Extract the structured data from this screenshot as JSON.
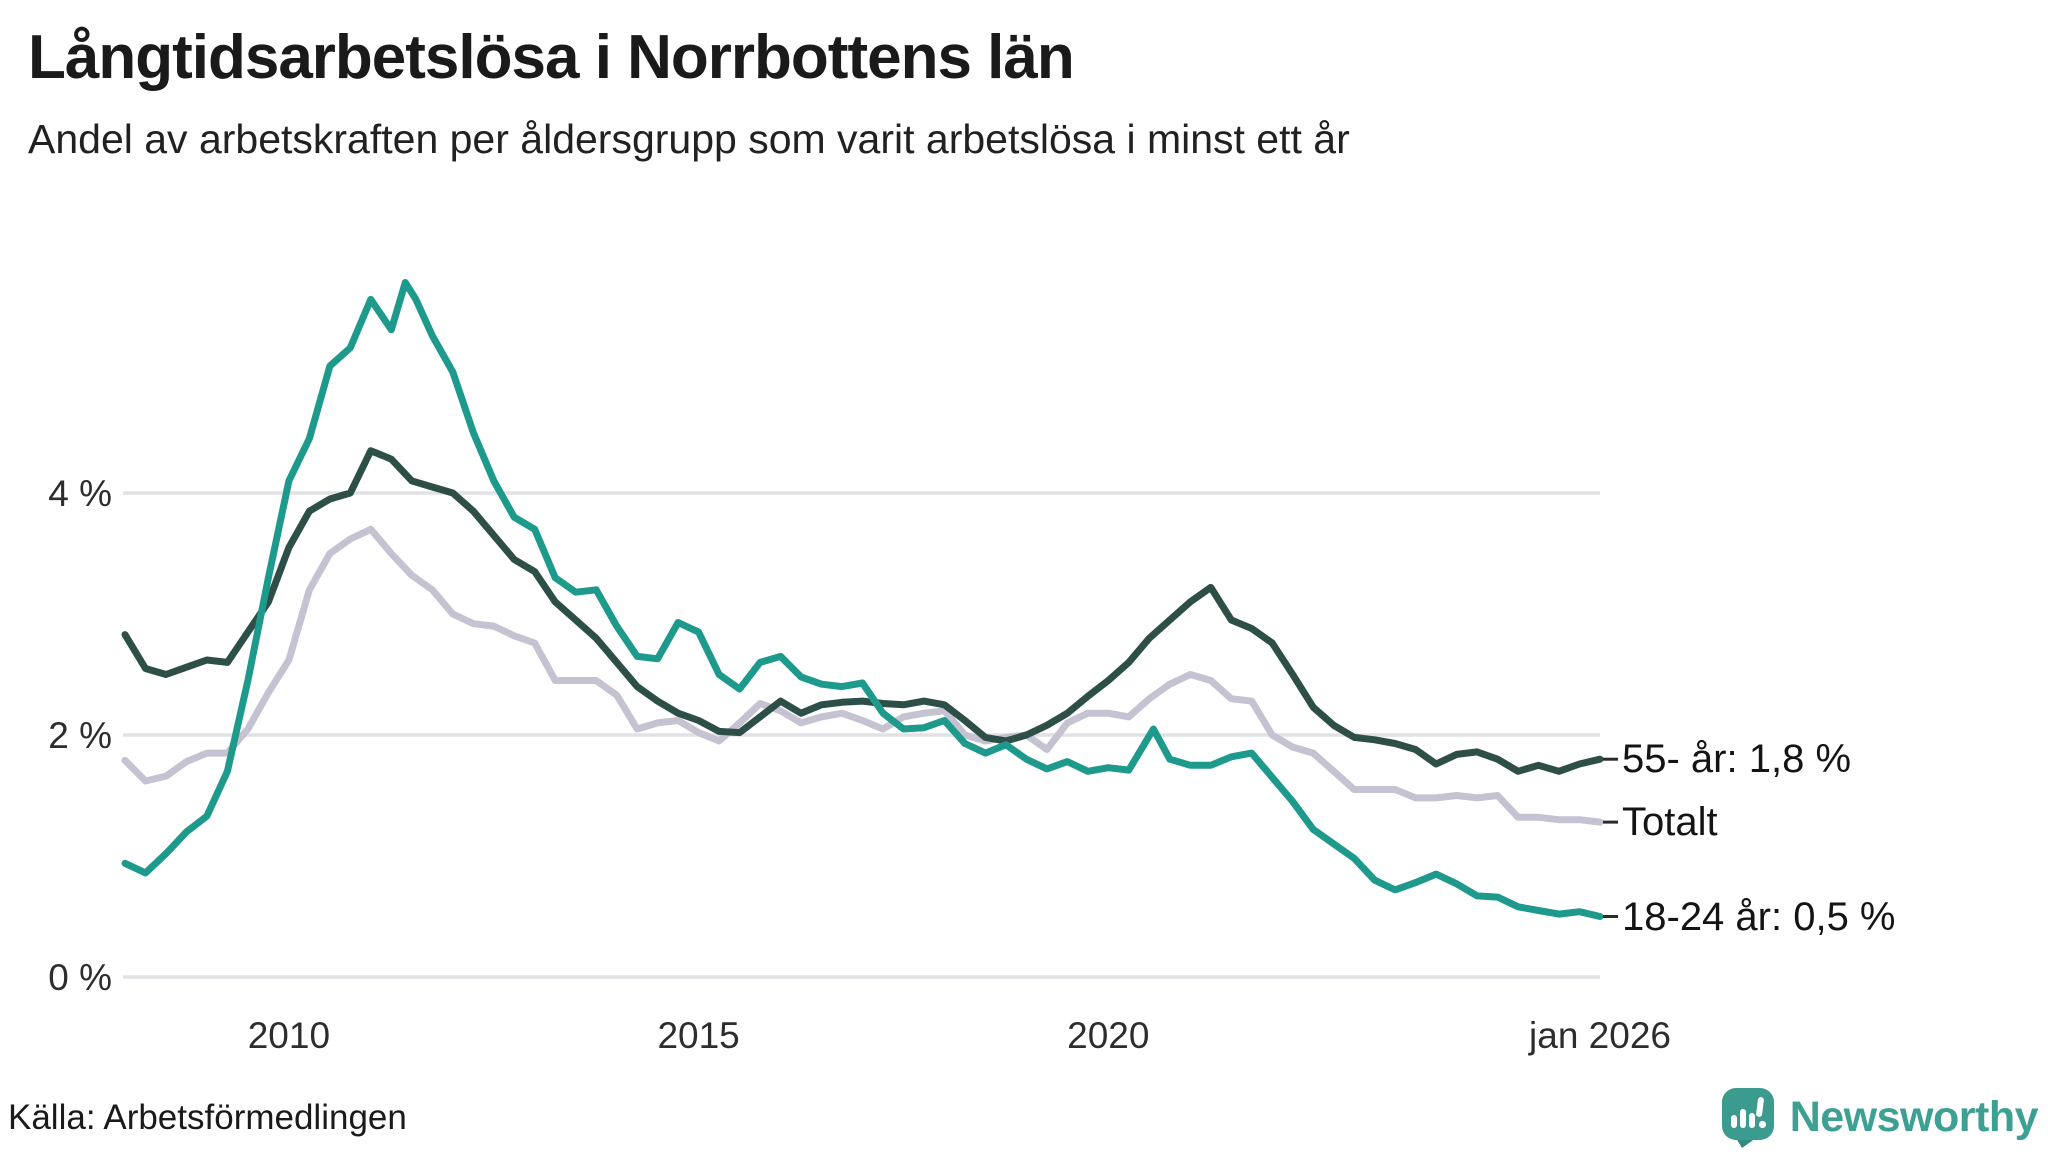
{
  "title": "Långtidsarbetslösa i Norrbottens län",
  "subtitle": "Andel av arbetskraften per åldersgrupp som varit arbetslösa i minst ett år",
  "source": "Källa: Arbetsförmedlingen",
  "logo": {
    "text": "Newsworthy",
    "icon": "newsworthy-speech-bubble-bar-chart",
    "icon_color": "#3a9b8e",
    "text_color": "#3ea093"
  },
  "colors": {
    "grid": "#e2e2e6",
    "axis_text": "#2d2d2d",
    "label_text": "#141414",
    "leader_tick": "#2b2b2b",
    "background": "#ffffff"
  },
  "chart_data": {
    "type": "line",
    "title": "Långtidsarbetslösa i Norrbottens län",
    "subtitle": "Andel av arbetskraften per åldersgrupp som varit arbetslösa i minst ett år",
    "grid": "horizontal",
    "legend_position": "end-of-line-labels-right",
    "x_range": [
      2008.0,
      2026.0
    ],
    "y_range": [
      0,
      6
    ],
    "x_ticks": [
      {
        "label": "2010",
        "year": 2010
      },
      {
        "label": "2015",
        "year": 2015
      },
      {
        "label": "2020",
        "year": 2020
      },
      {
        "label": "jan 2026",
        "year": 2026
      }
    ],
    "y_ticks": [
      {
        "label": "0 %",
        "value": 0
      },
      {
        "label": "2 %",
        "value": 2
      },
      {
        "label": "4 %",
        "value": 4
      }
    ],
    "series": [
      {
        "name": "Totalt",
        "label": "Totalt",
        "color": "#c5c3d1",
        "points": [
          [
            2008.0,
            1.79
          ],
          [
            2008.25,
            1.62
          ],
          [
            2008.5,
            1.66
          ],
          [
            2008.75,
            1.78
          ],
          [
            2009.0,
            1.85
          ],
          [
            2009.25,
            1.85
          ],
          [
            2009.5,
            2.05
          ],
          [
            2009.75,
            2.35
          ],
          [
            2010.0,
            2.62
          ],
          [
            2010.25,
            3.2
          ],
          [
            2010.5,
            3.5
          ],
          [
            2010.75,
            3.62
          ],
          [
            2011.0,
            3.7
          ],
          [
            2011.25,
            3.5
          ],
          [
            2011.5,
            3.32
          ],
          [
            2011.75,
            3.2
          ],
          [
            2012.0,
            3.0
          ],
          [
            2012.25,
            2.92
          ],
          [
            2012.5,
            2.9
          ],
          [
            2012.75,
            2.82
          ],
          [
            2013.0,
            2.76
          ],
          [
            2013.25,
            2.45
          ],
          [
            2013.5,
            2.45
          ],
          [
            2013.75,
            2.45
          ],
          [
            2014.0,
            2.33
          ],
          [
            2014.25,
            2.05
          ],
          [
            2014.5,
            2.1
          ],
          [
            2014.75,
            2.12
          ],
          [
            2015.0,
            2.02
          ],
          [
            2015.25,
            1.95
          ],
          [
            2015.5,
            2.1
          ],
          [
            2015.75,
            2.26
          ],
          [
            2016.0,
            2.2
          ],
          [
            2016.25,
            2.1
          ],
          [
            2016.5,
            2.15
          ],
          [
            2016.75,
            2.18
          ],
          [
            2017.0,
            2.12
          ],
          [
            2017.25,
            2.05
          ],
          [
            2017.5,
            2.15
          ],
          [
            2017.75,
            2.18
          ],
          [
            2018.0,
            2.2
          ],
          [
            2018.25,
            2.0
          ],
          [
            2018.5,
            1.95
          ],
          [
            2018.75,
            1.98
          ],
          [
            2019.0,
            2.0
          ],
          [
            2019.25,
            1.88
          ],
          [
            2019.5,
            2.1
          ],
          [
            2019.75,
            2.18
          ],
          [
            2020.0,
            2.18
          ],
          [
            2020.25,
            2.15
          ],
          [
            2020.5,
            2.3
          ],
          [
            2020.75,
            2.42
          ],
          [
            2021.0,
            2.5
          ],
          [
            2021.25,
            2.45
          ],
          [
            2021.5,
            2.3
          ],
          [
            2021.75,
            2.28
          ],
          [
            2022.0,
            2.0
          ],
          [
            2022.25,
            1.9
          ],
          [
            2022.5,
            1.85
          ],
          [
            2022.75,
            1.7
          ],
          [
            2023.0,
            1.55
          ],
          [
            2023.25,
            1.55
          ],
          [
            2023.5,
            1.55
          ],
          [
            2023.75,
            1.48
          ],
          [
            2024.0,
            1.48
          ],
          [
            2024.25,
            1.5
          ],
          [
            2024.5,
            1.48
          ],
          [
            2024.75,
            1.5
          ],
          [
            2025.0,
            1.32
          ],
          [
            2025.25,
            1.32
          ],
          [
            2025.5,
            1.3
          ],
          [
            2025.75,
            1.3
          ],
          [
            2026.0,
            1.28
          ]
        ]
      },
      {
        "name": "55- år",
        "label": "55- år: 1,8 %",
        "color": "#2d4f48",
        "points": [
          [
            2008.0,
            2.83
          ],
          [
            2008.25,
            2.55
          ],
          [
            2008.5,
            2.5
          ],
          [
            2008.75,
            2.56
          ],
          [
            2009.0,
            2.62
          ],
          [
            2009.25,
            2.6
          ],
          [
            2009.5,
            2.85
          ],
          [
            2009.75,
            3.1
          ],
          [
            2010.0,
            3.55
          ],
          [
            2010.25,
            3.85
          ],
          [
            2010.5,
            3.95
          ],
          [
            2010.75,
            4.0
          ],
          [
            2011.0,
            4.35
          ],
          [
            2011.25,
            4.28
          ],
          [
            2011.5,
            4.1
          ],
          [
            2011.75,
            4.05
          ],
          [
            2012.0,
            4.0
          ],
          [
            2012.25,
            3.85
          ],
          [
            2012.5,
            3.65
          ],
          [
            2012.75,
            3.45
          ],
          [
            2013.0,
            3.35
          ],
          [
            2013.25,
            3.1
          ],
          [
            2013.5,
            2.95
          ],
          [
            2013.75,
            2.8
          ],
          [
            2014.0,
            2.6
          ],
          [
            2014.25,
            2.4
          ],
          [
            2014.5,
            2.28
          ],
          [
            2014.75,
            2.18
          ],
          [
            2015.0,
            2.12
          ],
          [
            2015.25,
            2.03
          ],
          [
            2015.5,
            2.02
          ],
          [
            2015.75,
            2.15
          ],
          [
            2016.0,
            2.28
          ],
          [
            2016.25,
            2.18
          ],
          [
            2016.5,
            2.25
          ],
          [
            2016.75,
            2.27
          ],
          [
            2017.0,
            2.28
          ],
          [
            2017.25,
            2.26
          ],
          [
            2017.5,
            2.25
          ],
          [
            2017.75,
            2.28
          ],
          [
            2018.0,
            2.25
          ],
          [
            2018.25,
            2.12
          ],
          [
            2018.5,
            1.98
          ],
          [
            2018.75,
            1.95
          ],
          [
            2019.0,
            2.0
          ],
          [
            2019.25,
            2.08
          ],
          [
            2019.5,
            2.18
          ],
          [
            2019.75,
            2.32
          ],
          [
            2020.0,
            2.45
          ],
          [
            2020.25,
            2.6
          ],
          [
            2020.5,
            2.8
          ],
          [
            2020.75,
            2.95
          ],
          [
            2021.0,
            3.1
          ],
          [
            2021.25,
            3.22
          ],
          [
            2021.5,
            2.95
          ],
          [
            2021.75,
            2.88
          ],
          [
            2022.0,
            2.76
          ],
          [
            2022.25,
            2.5
          ],
          [
            2022.5,
            2.23
          ],
          [
            2022.75,
            2.08
          ],
          [
            2023.0,
            1.98
          ],
          [
            2023.25,
            1.96
          ],
          [
            2023.5,
            1.93
          ],
          [
            2023.75,
            1.88
          ],
          [
            2024.0,
            1.76
          ],
          [
            2024.25,
            1.84
          ],
          [
            2024.5,
            1.86
          ],
          [
            2024.75,
            1.8
          ],
          [
            2025.0,
            1.7
          ],
          [
            2025.25,
            1.75
          ],
          [
            2025.5,
            1.7
          ],
          [
            2025.75,
            1.76
          ],
          [
            2026.0,
            1.8
          ]
        ]
      },
      {
        "name": "18-24 år",
        "label": "18-24 år: 0,5 %",
        "color": "#1d9a8c",
        "points": [
          [
            2008.0,
            0.94
          ],
          [
            2008.25,
            0.86
          ],
          [
            2008.5,
            1.02
          ],
          [
            2008.75,
            1.2
          ],
          [
            2009.0,
            1.33
          ],
          [
            2009.25,
            1.7
          ],
          [
            2009.5,
            2.45
          ],
          [
            2009.75,
            3.3
          ],
          [
            2010.0,
            4.1
          ],
          [
            2010.25,
            4.45
          ],
          [
            2010.5,
            5.05
          ],
          [
            2010.75,
            5.2
          ],
          [
            2011.0,
            5.6
          ],
          [
            2011.25,
            5.35
          ],
          [
            2011.42,
            5.74
          ],
          [
            2011.55,
            5.6
          ],
          [
            2011.75,
            5.3
          ],
          [
            2012.0,
            5.0
          ],
          [
            2012.25,
            4.5
          ],
          [
            2012.5,
            4.1
          ],
          [
            2012.75,
            3.8
          ],
          [
            2013.0,
            3.7
          ],
          [
            2013.25,
            3.3
          ],
          [
            2013.5,
            3.18
          ],
          [
            2013.75,
            3.2
          ],
          [
            2014.0,
            2.9
          ],
          [
            2014.25,
            2.65
          ],
          [
            2014.5,
            2.63
          ],
          [
            2014.75,
            2.93
          ],
          [
            2015.0,
            2.85
          ],
          [
            2015.25,
            2.5
          ],
          [
            2015.5,
            2.38
          ],
          [
            2015.75,
            2.6
          ],
          [
            2016.0,
            2.65
          ],
          [
            2016.25,
            2.48
          ],
          [
            2016.5,
            2.42
          ],
          [
            2016.75,
            2.4
          ],
          [
            2017.0,
            2.43
          ],
          [
            2017.25,
            2.18
          ],
          [
            2017.5,
            2.05
          ],
          [
            2017.75,
            2.06
          ],
          [
            2018.0,
            2.12
          ],
          [
            2018.25,
            1.93
          ],
          [
            2018.5,
            1.85
          ],
          [
            2018.75,
            1.92
          ],
          [
            2019.0,
            1.8
          ],
          [
            2019.25,
            1.72
          ],
          [
            2019.5,
            1.78
          ],
          [
            2019.75,
            1.7
          ],
          [
            2020.0,
            1.73
          ],
          [
            2020.25,
            1.71
          ],
          [
            2020.55,
            2.05
          ],
          [
            2020.75,
            1.8
          ],
          [
            2021.0,
            1.75
          ],
          [
            2021.25,
            1.75
          ],
          [
            2021.5,
            1.82
          ],
          [
            2021.75,
            1.85
          ],
          [
            2022.0,
            1.65
          ],
          [
            2022.25,
            1.45
          ],
          [
            2022.5,
            1.22
          ],
          [
            2022.75,
            1.1
          ],
          [
            2023.0,
            0.98
          ],
          [
            2023.25,
            0.8
          ],
          [
            2023.5,
            0.72
          ],
          [
            2023.75,
            0.78
          ],
          [
            2024.0,
            0.85
          ],
          [
            2024.25,
            0.77
          ],
          [
            2024.5,
            0.67
          ],
          [
            2024.75,
            0.66
          ],
          [
            2025.0,
            0.58
          ],
          [
            2025.25,
            0.55
          ],
          [
            2025.5,
            0.52
          ],
          [
            2025.75,
            0.54
          ],
          [
            2026.0,
            0.5
          ]
        ]
      }
    ]
  }
}
